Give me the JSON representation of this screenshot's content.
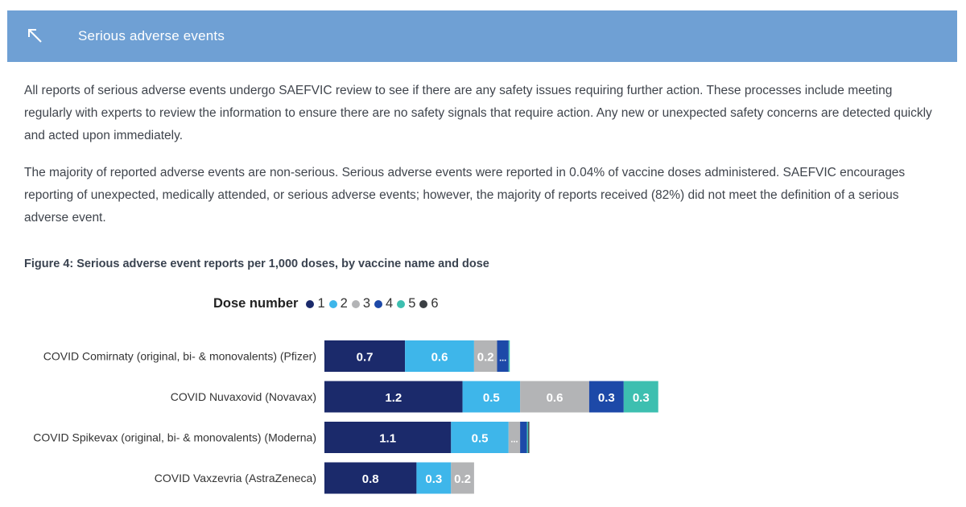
{
  "header": {
    "title": "Serious adverse events",
    "back_icon": "arrow-up-left-icon"
  },
  "paragraphs": {
    "p1": "All reports of serious adverse events undergo SAEFVIC review to see if there are any safety issues requiring further action. These processes include meeting regularly with experts to review the information to ensure there are no safety signals that require action. Any new or unexpected safety concerns are detected quickly and acted upon immediately.",
    "p2": "The majority of reported adverse events are non-serious. Serious adverse events were reported in 0.04% of vaccine doses administered. SAEFVIC encourages reporting of unexpected, medically attended, or serious adverse events; however, the majority of reports received (82%) did not meet the definition of a serious adverse event."
  },
  "figure_title": "Figure 4: Serious adverse event reports per 1,000 doses, by vaccine name and dose",
  "colors": {
    "header_bg": "#6fa0d4",
    "dose1": "#1b2a6b",
    "dose2": "#3eb6ea",
    "dose3": "#b3b4b6",
    "dose4": "#1d49a8",
    "dose5": "#3dbfb0",
    "dose6": "#3b3f44"
  },
  "chart_data": {
    "type": "bar",
    "orientation": "horizontal",
    "stacked": true,
    "title": "Figure 4: Serious adverse event reports per 1,000 doses, by vaccine name and dose",
    "legend": {
      "title": "Dose number",
      "placement": "top",
      "entries": [
        "1",
        "2",
        "3",
        "4",
        "5",
        "6"
      ]
    },
    "categories": [
      "COVID Comirnaty (original, bi- & monovalents) (Pfizer)",
      "COVID Nuvaxovid (Novavax)",
      "COVID Spikevax (original, bi- & monovalents) (Moderna)",
      "COVID Vaxzevria (AstraZeneca)"
    ],
    "series": [
      {
        "name": "1",
        "color": "#1b2a6b",
        "values": [
          0.7,
          1.2,
          1.1,
          0.8
        ],
        "labels": [
          "0.7",
          "1.2",
          "1.1",
          "0.8"
        ]
      },
      {
        "name": "2",
        "color": "#3eb6ea",
        "values": [
          0.6,
          0.5,
          0.5,
          0.3
        ],
        "labels": [
          "0.6",
          "0.5",
          "0.5",
          "0.3"
        ]
      },
      {
        "name": "3",
        "color": "#b3b4b6",
        "values": [
          0.2,
          0.6,
          0.1,
          0.2
        ],
        "labels": [
          "0.2",
          "0.6",
          "...",
          "0.2"
        ]
      },
      {
        "name": "4",
        "color": "#1d49a8",
        "values": [
          0.1,
          0.3,
          0.06,
          0
        ],
        "labels": [
          "...",
          "0.3",
          "",
          ""
        ]
      },
      {
        "name": "5",
        "color": "#3dbfb0",
        "values": [
          0.01,
          0.3,
          0.01,
          0
        ],
        "labels": [
          "",
          "0.3",
          "",
          ""
        ]
      },
      {
        "name": "6",
        "color": "#3b3f44",
        "values": [
          0,
          0,
          0.01,
          0
        ],
        "labels": [
          "",
          "",
          "",
          ""
        ]
      }
    ],
    "xlim": [
      0,
      2.9
    ],
    "grid": false,
    "show_x_axis": false
  }
}
